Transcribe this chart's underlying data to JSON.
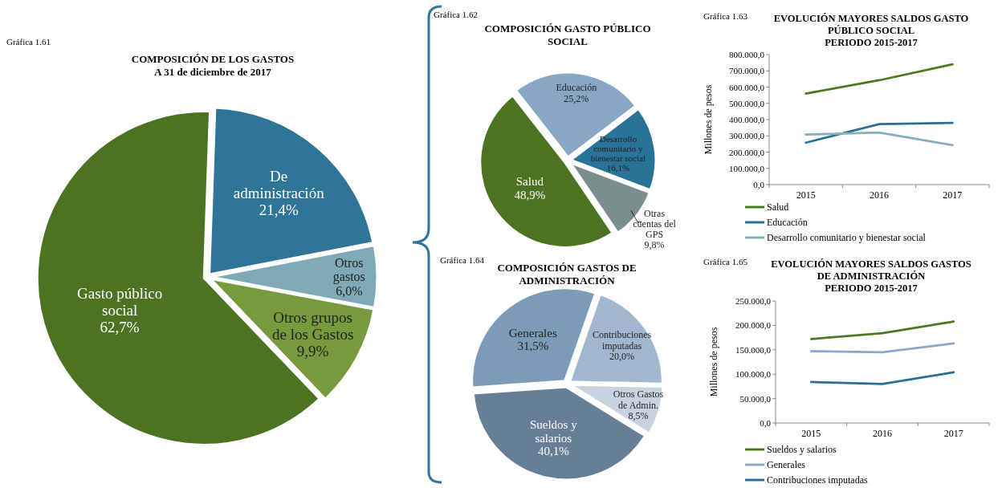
{
  "chart_data": [
    {
      "type": "pie",
      "title": "COMPOSICIÓN DE LOS GASTOS\nA 31 de diciembre  de 2017",
      "annotations": [
        "Gráfica 1.61"
      ],
      "categories": [
        "De\nadministración",
        "Otros\ngastos",
        "Otros grupos\nde los Gastos",
        "Gasto público\nsocial"
      ],
      "values": [
        21.4,
        6.0,
        9.9,
        62.7
      ],
      "value_labels": [
        "21,4%",
        "6,0%",
        "9,9%",
        "62,7%"
      ],
      "colors": [
        "#2e7597",
        "#7fa9b5",
        "#779a3e",
        "#4b7321"
      ]
    },
    {
      "type": "pie",
      "title": "COMPOSICIÓN GASTO PÚBLICO\nSOCIAL",
      "annotations": [
        "Gráfica 1.62"
      ],
      "categories": [
        "Educación",
        "Desarrollo\ncomunitario y\nbienestar social",
        "Otras\ncuentas del\nGPS",
        "Salud"
      ],
      "values": [
        25.2,
        16.1,
        9.8,
        48.9
      ],
      "value_labels": [
        "25,2%",
        "16,1%",
        "9,8%",
        "48,9%"
      ],
      "colors": [
        "#87a7c4",
        "#2a7398",
        "#7a8e8e",
        "#4b7321"
      ]
    },
    {
      "type": "line",
      "title": "EVOLUCIÓN MAYORES SALDOS GASTO\nPÚBLICO SOCIAL\nPERIODO 2015-2017",
      "annotations": [
        "Gráfica 1.63"
      ],
      "ylabel": "Millones de pesos",
      "categories": [
        "2015",
        "2016",
        "2017"
      ],
      "ylim": [
        0,
        800000
      ],
      "yticks": [
        {
          "value": 0,
          "label": "0,0"
        },
        {
          "value": 100000,
          "label": "100.000,0"
        },
        {
          "value": 200000,
          "label": "200.000,0"
        },
        {
          "value": 300000,
          "label": "300.000,0"
        },
        {
          "value": 400000,
          "label": "400.000,0"
        },
        {
          "value": 500000,
          "label": "500.000,0"
        },
        {
          "value": 600000,
          "label": "600.000,0"
        },
        {
          "value": 700000,
          "label": "700.000,0"
        },
        {
          "value": 800000,
          "label": "800.000,0"
        }
      ],
      "legend": "bottom",
      "series": [
        {
          "name": "Salud",
          "color": "#4a7a1e",
          "values": [
            560000,
            642000,
            740000
          ]
        },
        {
          "name": "Educación",
          "color": "#2a6f93",
          "values": [
            258000,
            372000,
            380000
          ]
        },
        {
          "name": "Desarrollo comunitario y bienestar social",
          "color": "#86afbd",
          "values": [
            308000,
            320000,
            243000
          ]
        }
      ]
    },
    {
      "type": "pie",
      "title": "COMPOSICIÓN GASTOS DE\nADMINISTRACIÓN",
      "annotations": [
        "Gráfica 1.64"
      ],
      "categories": [
        "Generales",
        "Contribuciones\nimputadas",
        "Otros Gastos\nde Admin.",
        "Sueldos y\nsalarios"
      ],
      "values": [
        31.5,
        20.0,
        8.5,
        40.1
      ],
      "value_labels": [
        "31,5%",
        "20,0%",
        "8,5%",
        "40,1%"
      ],
      "colors": [
        "#7b9bb8",
        "#a2b7cf",
        "#c8d3e0",
        "#667f96"
      ]
    },
    {
      "type": "line",
      "title": "EVOLUCIÓN MAYORES SALDOS GASTOS\nDE ADMINISTRACIÓN\nPERIODO 2015-2017",
      "annotations": [
        "Gráfica 1.65"
      ],
      "ylabel": "Millones de pesos",
      "categories": [
        "2015",
        "2016",
        "2017"
      ],
      "ylim": [
        0,
        250000
      ],
      "yticks": [
        {
          "value": 0,
          "label": "0,0"
        },
        {
          "value": 50000,
          "label": "50.000,0"
        },
        {
          "value": 100000,
          "label": "100.000,0"
        },
        {
          "value": 150000,
          "label": "150.000,0"
        },
        {
          "value": 200000,
          "label": "200.000,0"
        },
        {
          "value": 250000,
          "label": "250.000,0"
        }
      ],
      "legend": "bottom",
      "series": [
        {
          "name": "Sueldos y salarios",
          "color": "#4a7a1e",
          "values": [
            172000,
            184000,
            208000
          ]
        },
        {
          "name": "Generales",
          "color": "#8ba9c6",
          "values": [
            147000,
            145000,
            163000
          ]
        },
        {
          "name": "Contribuciones imputadas",
          "color": "#2a6f93",
          "values": [
            84000,
            80000,
            104000
          ]
        }
      ]
    }
  ]
}
